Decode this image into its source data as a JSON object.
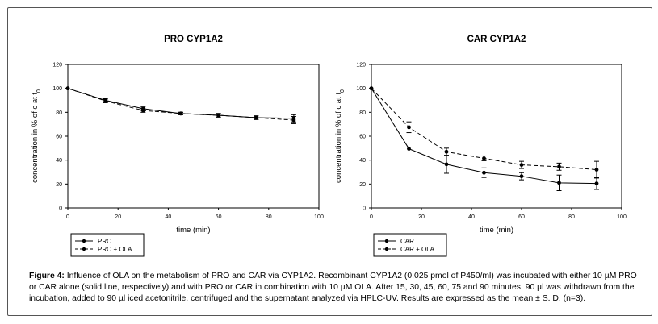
{
  "chart_data": [
    {
      "type": "line",
      "title": "PRO CYP1A2",
      "xlabel": "time (min)",
      "ylabel": "concentration in % of c at t",
      "ylabel_sub": "0",
      "xlim": [
        0,
        100
      ],
      "ylim": [
        0,
        120
      ],
      "xticks": [
        0,
        20,
        40,
        60,
        80,
        100
      ],
      "yticks": [
        0,
        20,
        40,
        60,
        80,
        100,
        120
      ],
      "grid": false,
      "legend_position": "below",
      "series": [
        {
          "name": "PRO",
          "style": "solid",
          "x": [
            0,
            15,
            30,
            45,
            60,
            75,
            90
          ],
          "y": [
            100,
            90,
            83,
            79,
            77.5,
            75.5,
            75
          ],
          "err": [
            0,
            1.5,
            1.5,
            1,
            1.5,
            1.5,
            3
          ]
        },
        {
          "name": "PRO + OLA",
          "style": "dashed",
          "x": [
            0,
            15,
            30,
            45,
            60,
            75,
            90
          ],
          "y": [
            100,
            89.5,
            81.5,
            79,
            77.5,
            75.5,
            73.5
          ],
          "err": [
            0,
            1.5,
            1.5,
            1,
            1.5,
            1.5,
            3
          ]
        }
      ]
    },
    {
      "type": "line",
      "title": "CAR CYP1A2",
      "xlabel": "time (min)",
      "ylabel": "concentration in % of c at t",
      "ylabel_sub": "0",
      "xlim": [
        0,
        100
      ],
      "ylim": [
        0,
        120
      ],
      "xticks": [
        0,
        20,
        40,
        60,
        80,
        100
      ],
      "yticks": [
        0,
        20,
        40,
        60,
        80,
        100,
        120
      ],
      "grid": false,
      "legend_position": "below",
      "series": [
        {
          "name": "CAR",
          "style": "solid",
          "x": [
            0,
            15,
            30,
            45,
            60,
            75,
            90
          ],
          "y": [
            100,
            49.5,
            36.5,
            29.5,
            26.5,
            21,
            20.5
          ],
          "err": [
            0,
            0,
            7.5,
            4,
            3,
            6.5,
            5
          ]
        },
        {
          "name": "CAR + OLA",
          "style": "dashed",
          "x": [
            0,
            15,
            30,
            45,
            60,
            75,
            90
          ],
          "y": [
            100,
            67.5,
            47,
            41.5,
            36,
            34.5,
            32
          ],
          "err": [
            0,
            4.5,
            3,
            2,
            3,
            3,
            7
          ]
        }
      ]
    }
  ],
  "caption": {
    "label": "Figure 4:",
    "text": " Influence of OLA on the metabolism of PRO and CAR via CYP1A2. Recombinant CYP1A2 (0.025 pmol of P450/ml) was incubated with either 10 µM PRO or CAR alone (solid line, respectively) and with PRO or CAR in combination with 10 µM OLA. After 15, 30, 45, 60, 75 and 90 minutes, 90 µl was withdrawn from the incubation, added to 90 µl iced acetonitrile, centrifuged and the supernatant analyzed via HPLC-UV. Results are expressed as the mean ± S. D. (n=3)."
  }
}
